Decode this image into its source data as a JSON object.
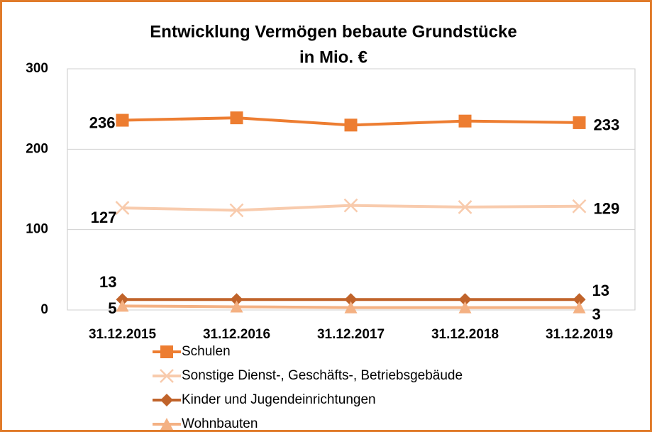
{
  "chart_data": {
    "type": "line",
    "title": [
      "Entwicklung Vermögen bebaute Grundstücke",
      "in Mio. €"
    ],
    "categories": [
      "31.12.2015",
      "31.12.2016",
      "31.12.2017",
      "31.12.2018",
      "31.12.2019"
    ],
    "series": [
      {
        "name": "Schulen",
        "color": "#ed7d31",
        "marker": "square",
        "values": [
          236,
          239,
          230,
          235,
          233
        ]
      },
      {
        "name": "Sonstige Dienst-, Geschäfts-, Betriebsgebäude",
        "color": "#f8cbad",
        "marker": "x",
        "values": [
          127,
          124,
          130,
          128,
          129
        ]
      },
      {
        "name": "Kinder und Jugendeinrichtungen",
        "color": "#c0632a",
        "marker": "diamond",
        "values": [
          13,
          13,
          13,
          13,
          13
        ]
      },
      {
        "name": "Wohnbauten",
        "color": "#f4b183",
        "marker": "triangle",
        "values": [
          5,
          4,
          3,
          3,
          3
        ]
      }
    ],
    "ylim": [
      0,
      300
    ],
    "yticks": [
      0,
      100,
      200,
      300
    ],
    "grid": true,
    "legend": "bottom-left"
  }
}
